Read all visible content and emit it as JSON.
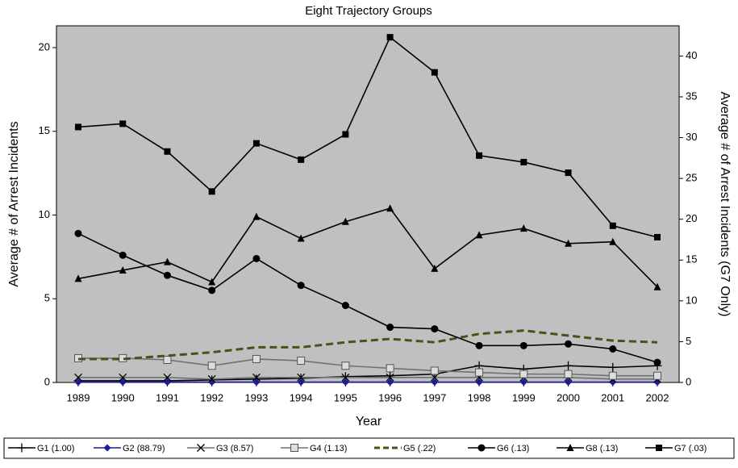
{
  "chart_data": {
    "type": "line",
    "title": "Eight Trajectory Groups",
    "x_label": "Year",
    "y_label": "Average # of Arrest Incidents",
    "y2_label": "Average # of Arrest Incidents (G7 Only)",
    "categories": [
      "1989",
      "1990",
      "1991",
      "1992",
      "1993",
      "1994",
      "1995",
      "1996",
      "1997",
      "1998",
      "1999",
      "2000",
      "2001",
      "2002"
    ],
    "ylim": [
      0,
      21.3
    ],
    "yticks": [
      0,
      5,
      10,
      15,
      20
    ],
    "y2lim": [
      0,
      43.7
    ],
    "y2ticks": [
      0,
      5,
      10,
      15,
      20,
      25,
      30,
      35,
      40
    ],
    "background": "#c0c0c0",
    "series": [
      {
        "name": "G1 (1.00)",
        "color": "#000000",
        "marker": "plus",
        "values": [
          0.1,
          0.1,
          0.1,
          0.15,
          0.2,
          0.25,
          0.35,
          0.4,
          0.5,
          1.0,
          0.8,
          1.0,
          0.9,
          1.0
        ]
      },
      {
        "name": "G2 (88.79)",
        "color": "#1a1a9a",
        "marker": "diamond",
        "values": [
          0.02,
          0.02,
          0.02,
          0.02,
          0.02,
          0.02,
          0.02,
          0.02,
          0.02,
          0.02,
          0.02,
          0.02,
          0.02,
          0.02
        ]
      },
      {
        "name": "G3 (8.57)",
        "color": "#707070",
        "marker": "cross",
        "values": [
          0.3,
          0.3,
          0.3,
          0.2,
          0.3,
          0.3,
          0.3,
          0.3,
          0.3,
          0.3,
          0.3,
          0.3,
          0.2,
          0.2
        ]
      },
      {
        "name": "G4 (1.13)",
        "color": "#707070",
        "marker": "open-square",
        "values": [
          1.45,
          1.45,
          1.35,
          1.0,
          1.4,
          1.3,
          1.0,
          0.85,
          0.7,
          0.6,
          0.5,
          0.5,
          0.4,
          0.4
        ]
      },
      {
        "name": "G5 (.22)",
        "color": "#4f4f1a",
        "marker": "none",
        "dash": true,
        "values": [
          1.4,
          1.4,
          1.6,
          1.8,
          2.1,
          2.1,
          2.4,
          2.6,
          2.4,
          2.9,
          3.1,
          2.8,
          2.5,
          2.4
        ]
      },
      {
        "name": "G6 (.13)",
        "color": "#000000",
        "marker": "circle",
        "values": [
          8.9,
          7.6,
          6.4,
          5.5,
          7.4,
          5.8,
          4.6,
          3.3,
          3.2,
          2.2,
          2.2,
          2.3,
          2.0,
          1.2
        ]
      },
      {
        "name": "G8 (.13)",
        "color": "#000000",
        "marker": "triangle",
        "values": [
          6.2,
          6.7,
          7.2,
          6.0,
          9.9,
          8.6,
          9.6,
          10.4,
          6.8,
          8.8,
          9.2,
          8.3,
          8.4,
          5.7
        ]
      },
      {
        "name": "G7 (.03)",
        "color": "#000000",
        "marker": "square",
        "axis": "y2",
        "values": [
          31.3,
          31.7,
          28.3,
          23.4,
          29.3,
          27.3,
          30.4,
          42.3,
          38.0,
          27.8,
          27.0,
          25.7,
          19.2,
          17.8
        ]
      }
    ]
  }
}
